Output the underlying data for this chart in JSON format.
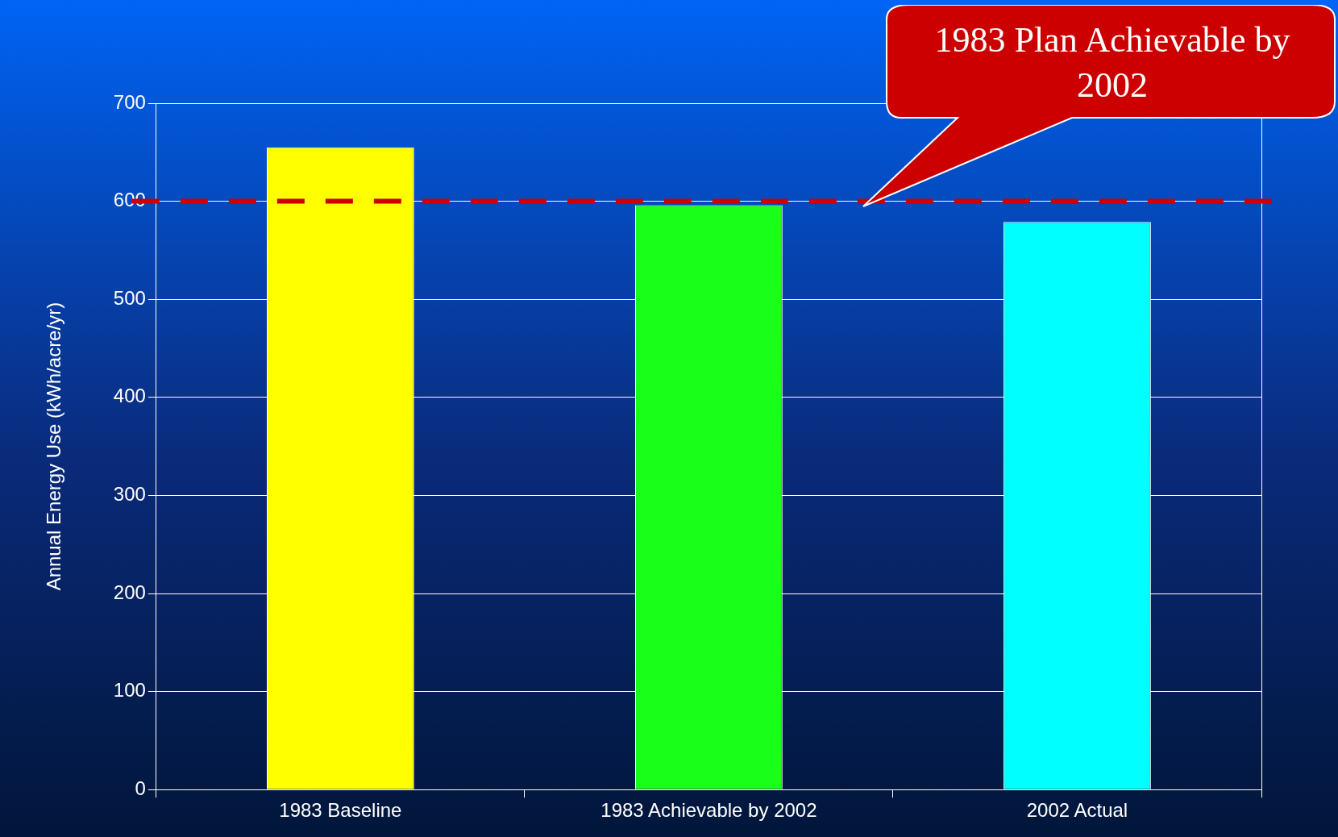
{
  "chart_data": {
    "type": "bar",
    "ylabel": "Annual Energy Use (kWh/acre/yr)",
    "categories": [
      "1983 Baseline",
      "1983 Achievable by 2002",
      "2002 Actual"
    ],
    "values": [
      655,
      596,
      579
    ],
    "colors": [
      "#ffff00",
      "#19ff19",
      "#00ffff"
    ],
    "ylim": [
      0,
      700
    ],
    "yticks": [
      0,
      100,
      200,
      300,
      400,
      500,
      600,
      700
    ],
    "grid": "y",
    "ref_lines": [
      {
        "axis": "y",
        "value": 600,
        "label": "1983 Plan Achievable by 2002",
        "color": "#cc0000",
        "line_style": "dashed"
      }
    ]
  }
}
